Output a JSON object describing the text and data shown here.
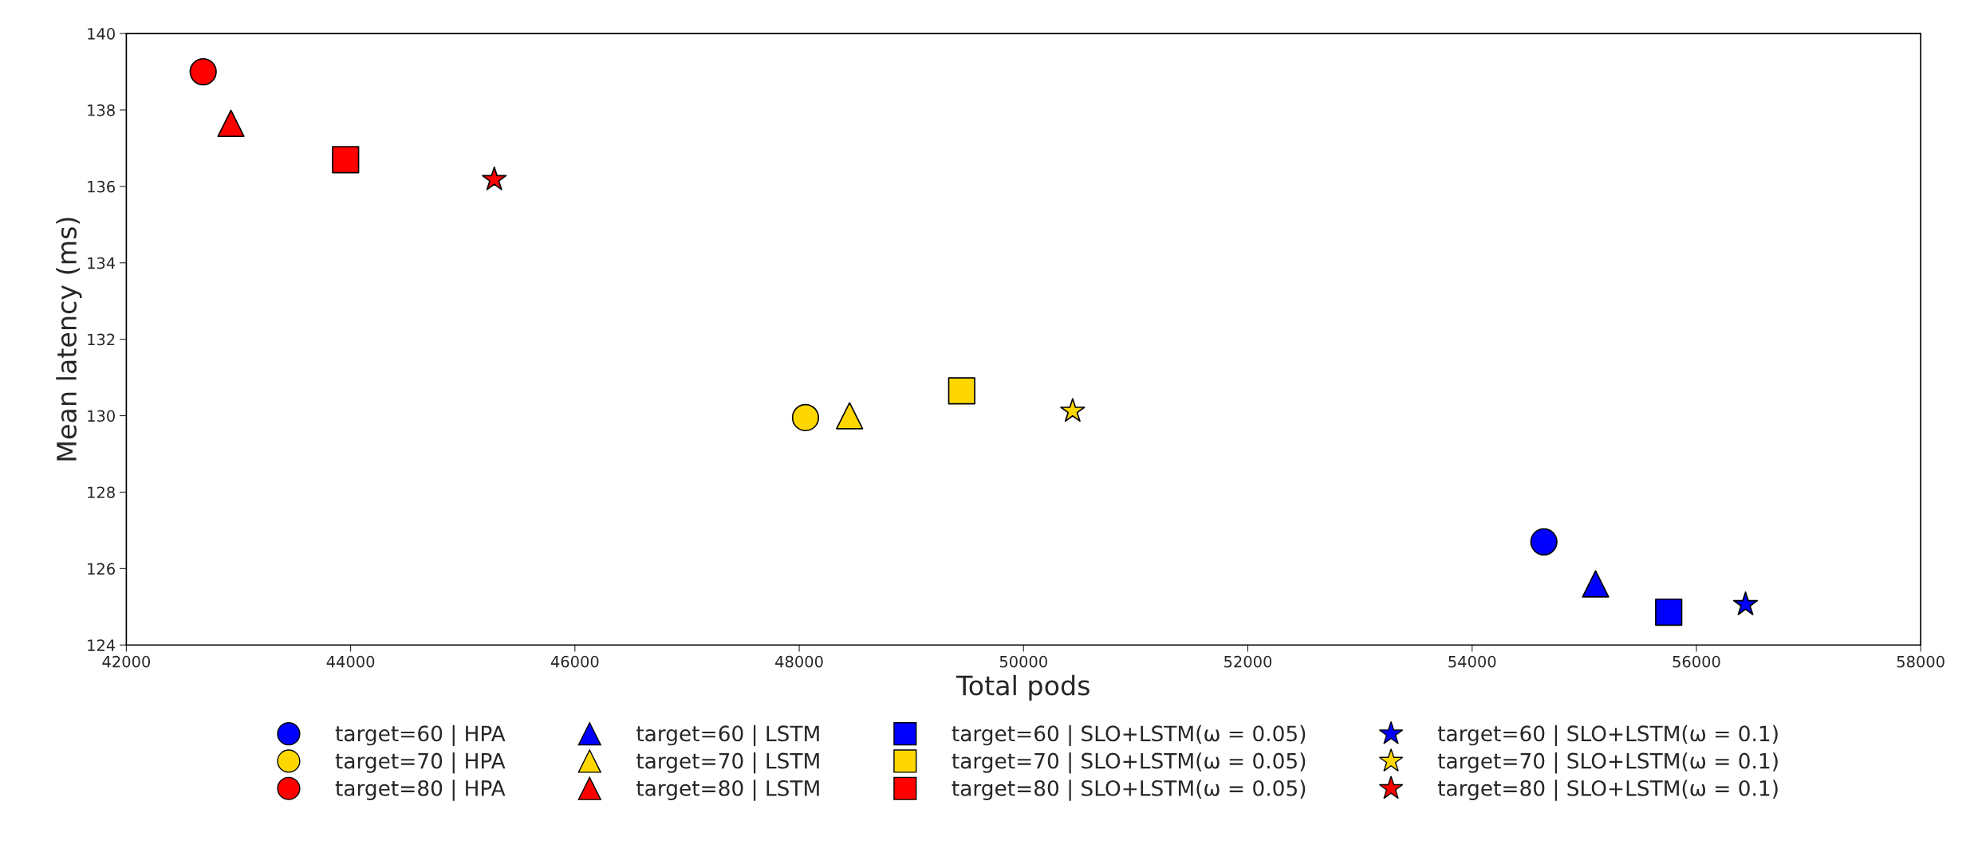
{
  "chart_data": {
    "type": "scatter",
    "xlabel": "Total pods",
    "ylabel": "Mean latency (ms)",
    "xlim": [
      42000,
      58000
    ],
    "xticks": [
      42000,
      44000,
      46000,
      48000,
      50000,
      52000,
      54000,
      56000,
      58000
    ],
    "ylim": [
      124,
      140
    ],
    "yticks": [
      124,
      126,
      128,
      130,
      132,
      134,
      136,
      138,
      140
    ],
    "grid": false,
    "legend": "bottom",
    "series": [
      {
        "name": "target=60 | HPA",
        "color": "#0000ff",
        "marker": "circle",
        "x": [
          54640
        ],
        "values": [
          126.7
        ]
      },
      {
        "name": "target=70 | HPA",
        "color": "#ffd700",
        "marker": "circle",
        "x": [
          48056
        ],
        "values": [
          129.95
        ]
      },
      {
        "name": "target=80 | HPA",
        "color": "#ff0000",
        "marker": "circle",
        "x": [
          42685
        ],
        "values": [
          139.0
        ]
      },
      {
        "name": "target=60 | LSTM",
        "color": "#0000ff",
        "marker": "triangle",
        "x": [
          55101
        ],
        "values": [
          125.6
        ]
      },
      {
        "name": "target=70 | LSTM",
        "color": "#ffd700",
        "marker": "triangle",
        "x": [
          48449
        ],
        "values": [
          130.0
        ]
      },
      {
        "name": "target=80 | LSTM",
        "color": "#ff0000",
        "marker": "triangle",
        "x": [
          42933
        ],
        "values": [
          137.65
        ]
      },
      {
        "name": "target=60 | SLO+LSTM(ω = 0.05)",
        "color": "#0000ff",
        "marker": "square",
        "x": [
          55753
        ],
        "values": [
          124.86
        ]
      },
      {
        "name": "target=70 | SLO+LSTM(ω = 0.05)",
        "color": "#ffd700",
        "marker": "square",
        "x": [
          49449
        ],
        "values": [
          130.65
        ]
      },
      {
        "name": "target=80 | SLO+LSTM(ω = 0.05)",
        "color": "#ff0000",
        "marker": "square",
        "x": [
          43955
        ],
        "values": [
          136.7
        ]
      },
      {
        "name": "target=60 | SLO+LSTM(ω = 0.1)",
        "color": "#0000ff",
        "marker": "star",
        "x": [
          56438
        ],
        "values": [
          125.06
        ]
      },
      {
        "name": "target=70 | SLO+LSTM(ω = 0.1)",
        "color": "#ffd700",
        "marker": "star",
        "x": [
          50438
        ],
        "values": [
          130.12
        ]
      },
      {
        "name": "target=80 | SLO+LSTM(ω = 0.1)",
        "color": "#ff0000",
        "marker": "star",
        "x": [
          45281
        ],
        "values": [
          136.18
        ]
      }
    ]
  }
}
